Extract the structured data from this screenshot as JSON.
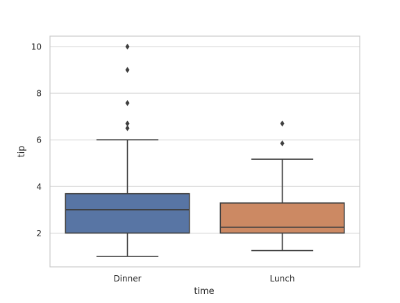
{
  "chart_data": {
    "type": "box",
    "xlabel": "time",
    "ylabel": "tip",
    "categories": [
      "Dinner",
      "Lunch"
    ],
    "yticks": [
      2,
      4,
      6,
      8,
      10
    ],
    "ylim": [
      0.55,
      10.45
    ],
    "grid": true,
    "boxes": [
      {
        "category": "Dinner",
        "whisker_low": 1.0,
        "q1": 2.0,
        "median": 3.0,
        "q3": 3.69,
        "whisker_high": 6.0,
        "outliers": [
          6.5,
          6.7,
          7.58,
          9.0,
          10.0
        ],
        "color": "#5875a4"
      },
      {
        "category": "Lunch",
        "whisker_low": 1.25,
        "q1": 2.0,
        "median": 2.25,
        "q3": 3.29,
        "whisker_high": 5.17,
        "outliers": [
          5.85,
          6.7
        ],
        "color": "#cc8963"
      }
    ],
    "colors": {
      "grid": "#d3d3d3",
      "spine": "#cccccc",
      "line": "#3f3f3f",
      "text": "#262626"
    }
  }
}
